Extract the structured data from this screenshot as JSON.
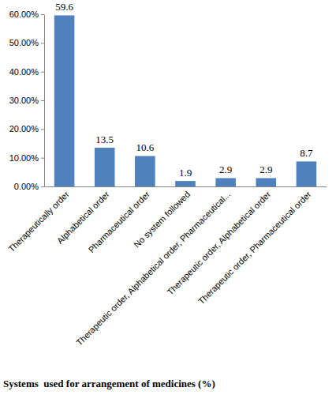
{
  "chart_data": {
    "type": "bar",
    "title": "Systems  used for arrangement of medicines (%)",
    "categories": [
      "Therapeutically order",
      "Alphabetical order",
      "Pharmaceutical order",
      "No system followed",
      "Therapeutic order, Alphabetical order, Pharmaceutical...",
      "Therapeutic order, Alphabetical order",
      "Therapeutic order, Pharmaceutical order"
    ],
    "values": [
      59.6,
      13.5,
      10.6,
      1.9,
      2.9,
      2.9,
      8.7
    ],
    "color": "#4f81bd",
    "ylim": [
      0,
      60
    ],
    "yticks": [
      {
        "value": 0,
        "label": "0.00%"
      },
      {
        "value": 10,
        "label": "10.00%"
      },
      {
        "value": 20,
        "label": "20.00%"
      },
      {
        "value": 30,
        "label": "30.00%"
      },
      {
        "value": 40,
        "label": "40.00%"
      },
      {
        "value": 50,
        "label": "50.00%"
      },
      {
        "value": 60,
        "label": "60.00%"
      }
    ],
    "grid": false,
    "data_labels": true
  }
}
